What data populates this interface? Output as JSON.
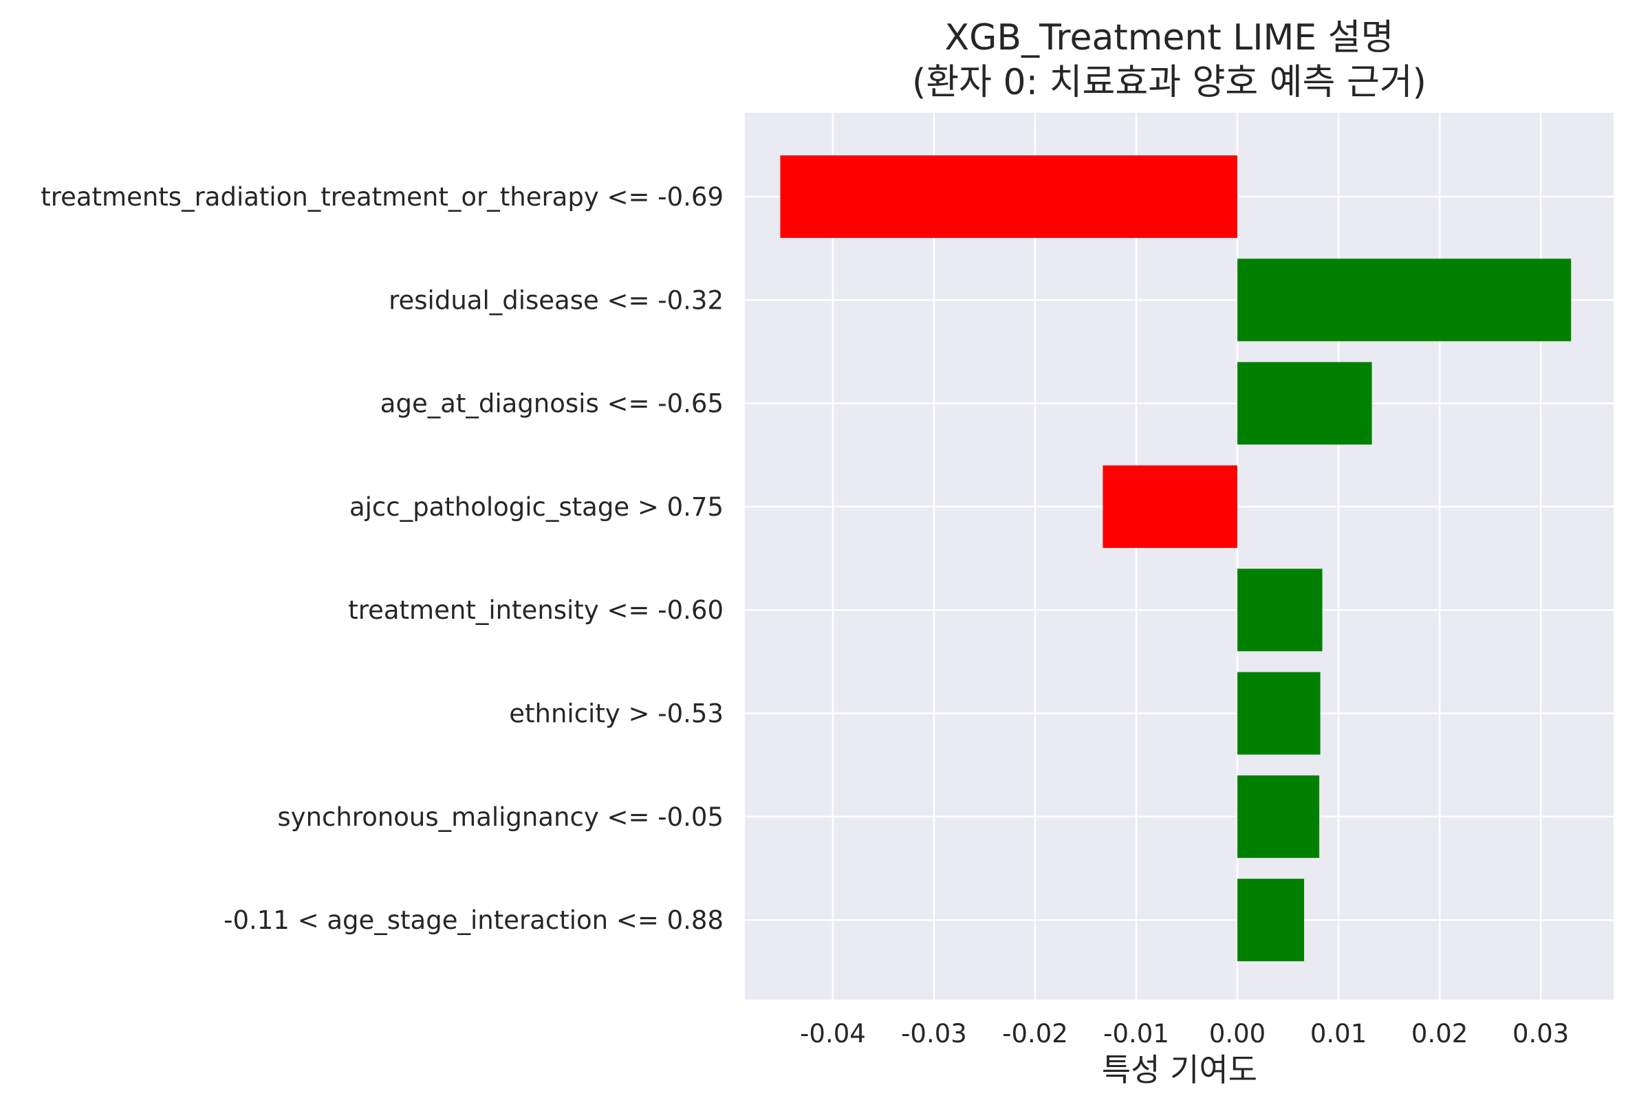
{
  "chart_data": {
    "type": "bar",
    "orientation": "horizontal",
    "title": [
      "XGB_Treatment LIME 설명",
      "(환자 0: 치료효과 양호 예측 근거)"
    ],
    "xlabel": "특성 기여도",
    "ylabel": "",
    "xlim": [
      -0.0487,
      0.0372
    ],
    "xticks": [
      -0.04,
      -0.03,
      -0.02,
      -0.01,
      0.0,
      0.01,
      0.02,
      0.03
    ],
    "xtick_labels": [
      "-0.04",
      "-0.03",
      "-0.02",
      "-0.01",
      "0.00",
      "0.01",
      "0.02",
      "0.03"
    ],
    "categories": [
      "treatments_radiation_treatment_or_therapy <= -0.69",
      "residual_disease <= -0.32",
      "age_at_diagnosis <= -0.65",
      "ajcc_pathologic_stage > 0.75",
      "treatment_intensity <= -0.60",
      "ethnicity > -0.53",
      "synchronous_malignancy <= -0.05",
      "-0.11 < age_stage_interaction <= 0.88"
    ],
    "values": [
      -0.0452,
      0.033,
      0.0133,
      -0.0133,
      0.0084,
      0.0082,
      0.0081,
      0.0066
    ],
    "colors": {
      "positive": "#008000",
      "negative": "#ff0000",
      "background": "#eaeaf2",
      "grid": "#ffffff",
      "text": "#262626"
    },
    "grid": true
  }
}
